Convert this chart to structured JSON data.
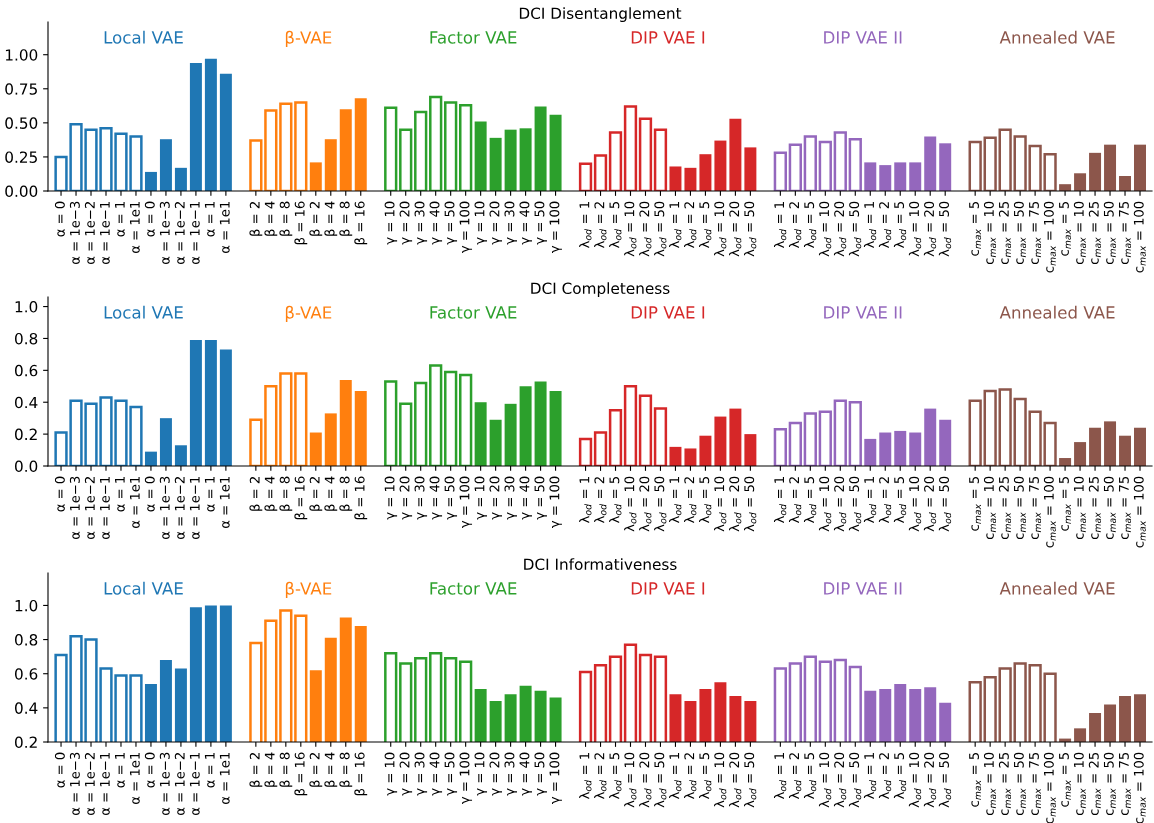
{
  "chart_data": [
    {
      "type": "bar",
      "title": "DCI Disentanglement",
      "annotations": [
        "Local VAE",
        "β-VAE",
        "Factor VAE",
        "DIP VAE I",
        "DIP VAE II",
        "Annealed VAE"
      ],
      "categories": [
        "α = 0",
        "α = 1e−3",
        "α = 1e−2",
        "α = 1e−1",
        "α = 1",
        "α = 1e1",
        "α = 0",
        "α = 1e−3",
        "α = 1e−2",
        "α = 1e−1",
        "α = 1",
        "α = 1e1",
        null,
        "β = 2",
        "β = 4",
        "β = 8",
        "β = 16",
        "β = 2",
        "β = 4",
        "β = 8",
        "β = 16",
        null,
        "γ = 10",
        "γ = 20",
        "γ = 30",
        "γ = 40",
        "γ = 50",
        "γ = 100",
        "γ = 10",
        "γ = 20",
        "γ = 30",
        "γ = 40",
        "γ = 50",
        "γ = 100",
        null,
        "λ$_{od}$ = 1",
        "λ$_{od}$ = 2",
        "λ$_{od}$ = 5",
        "λ$_{od}$ = 10",
        "λ$_{od}$ = 20",
        "λ$_{od}$ = 50",
        "λ$_{od}$ = 1",
        "λ$_{od}$ = 2",
        "λ$_{od}$ = 5",
        "λ$_{od}$ = 10",
        "λ$_{od}$ = 20",
        "λ$_{od}$ = 50",
        null,
        "λ$_{od}$ = 1",
        "λ$_{od}$ = 2",
        "λ$_{od}$ = 5",
        "λ$_{od}$ = 10",
        "λ$_{od}$ = 20",
        "λ$_{od}$ = 50",
        "λ$_{od}$ = 1",
        "λ$_{od}$ = 2",
        "λ$_{od}$ = 5",
        "λ$_{od}$ = 10",
        "λ$_{od}$ = 20",
        "λ$_{od}$ = 50",
        null,
        "c$_{max}$ = 5",
        "c$_{max}$ = 10",
        "c$_{max}$ = 25",
        "c$_{max}$ = 50",
        "c$_{max}$ = 75",
        "c$_{max}$ = 100",
        "c$_{max}$ = 5",
        "c$_{max}$ = 10",
        "c$_{max}$ = 25",
        "c$_{max}$ = 50",
        "c$_{max}$ = 75",
        "c$_{max}$ = 100"
      ],
      "ylim": [
        0,
        1.24
      ],
      "yticks": [
        {
          "value": 0,
          "label": "0.00"
        },
        {
          "value": 0.25,
          "label": "0.25"
        },
        {
          "value": 0.5,
          "label": "0.50"
        },
        {
          "value": 0.75,
          "label": "0.75"
        },
        {
          "value": 1,
          "label": "1.00"
        }
      ],
      "series": [
        {
          "colors": [
            "#1f77b4",
            "#1f77b4",
            "#1f77b4",
            "#1f77b4",
            "#1f77b4",
            "#1f77b4",
            null,
            null,
            null,
            null,
            null,
            null,
            null,
            "#ff7f0e",
            "#ff7f0e",
            "#ff7f0e",
            "#ff7f0e",
            null,
            null,
            null,
            null,
            null,
            "#2ca02c",
            "#2ca02c",
            "#2ca02c",
            "#2ca02c",
            "#2ca02c",
            "#2ca02c",
            null,
            null,
            null,
            null,
            null,
            null,
            null,
            "#d62728",
            "#d62728",
            "#d62728",
            "#d62728",
            "#d62728",
            "#d62728",
            null,
            null,
            null,
            null,
            null,
            null,
            null,
            "#9467bd",
            "#9467bd",
            "#9467bd",
            "#9467bd",
            "#9467bd",
            "#9467bd",
            null,
            null,
            null,
            null,
            null,
            null,
            null,
            "#8c564b",
            "#8c564b",
            "#8c564b",
            "#8c564b",
            "#8c564b",
            "#8c564b",
            null,
            null,
            null,
            null,
            null,
            null
          ],
          "values": [
            0.25,
            0.49,
            0.45,
            0.46,
            0.42,
            0.4,
            null,
            null,
            null,
            null,
            null,
            null,
            null,
            0.37,
            0.59,
            0.64,
            0.65,
            null,
            null,
            null,
            null,
            null,
            0.61,
            0.45,
            0.58,
            0.69,
            0.65,
            0.63,
            null,
            null,
            null,
            null,
            null,
            null,
            null,
            0.2,
            0.26,
            0.43,
            0.62,
            0.53,
            0.45,
            null,
            null,
            null,
            null,
            null,
            null,
            null,
            0.28,
            0.34,
            0.4,
            0.36,
            0.43,
            0.38,
            null,
            null,
            null,
            null,
            null,
            null,
            null,
            0.36,
            0.39,
            0.45,
            0.4,
            0.33,
            0.27,
            null,
            null,
            null,
            null,
            null,
            null
          ]
        },
        {
          "colors": [
            null,
            null,
            null,
            null,
            null,
            null,
            "#1f77b4",
            "#1f77b4",
            "#1f77b4",
            "#1f77b4",
            "#1f77b4",
            "#1f77b4",
            null,
            null,
            null,
            null,
            null,
            "#ff7f0e",
            "#ff7f0e",
            "#ff7f0e",
            "#ff7f0e",
            null,
            null,
            null,
            null,
            null,
            null,
            null,
            "#2ca02c",
            "#2ca02c",
            "#2ca02c",
            "#2ca02c",
            "#2ca02c",
            "#2ca02c",
            null,
            null,
            null,
            null,
            null,
            null,
            null,
            "#d62728",
            "#d62728",
            "#d62728",
            "#d62728",
            "#d62728",
            "#d62728",
            null,
            null,
            null,
            null,
            null,
            null,
            null,
            "#9467bd",
            "#9467bd",
            "#9467bd",
            "#9467bd",
            "#9467bd",
            "#9467bd",
            null,
            null,
            null,
            null,
            null,
            null,
            null,
            "#8c564b",
            "#8c564b",
            "#8c564b",
            "#8c564b",
            "#8c564b",
            "#8c564b"
          ],
          "values": [
            null,
            null,
            null,
            null,
            null,
            null,
            0.14,
            0.38,
            0.17,
            0.94,
            0.97,
            0.86,
            null,
            null,
            null,
            null,
            null,
            0.21,
            0.38,
            0.6,
            0.68,
            null,
            null,
            null,
            null,
            null,
            null,
            null,
            0.51,
            0.39,
            0.45,
            0.46,
            0.62,
            0.56,
            null,
            null,
            null,
            null,
            null,
            null,
            null,
            0.18,
            0.17,
            0.27,
            0.37,
            0.53,
            0.32,
            null,
            null,
            null,
            null,
            null,
            null,
            null,
            0.21,
            0.19,
            0.21,
            0.21,
            0.4,
            0.35,
            null,
            null,
            null,
            null,
            null,
            null,
            null,
            0.05,
            0.13,
            0.28,
            0.34,
            0.11,
            0.34
          ]
        }
      ]
    },
    {
      "type": "bar",
      "title": "DCI Completeness",
      "annotations": [
        "Local VAE",
        "β-VAE",
        "Factor VAE",
        "DIP VAE I",
        "DIP VAE II",
        "Annealed VAE"
      ],
      "categories": [
        "α = 0",
        "α = 1e−3",
        "α = 1e−2",
        "α = 1e−1",
        "α = 1",
        "α = 1e1",
        "α = 0",
        "α = 1e−3",
        "α = 1e−2",
        "α = 1e−1",
        "α = 1",
        "α = 1e1",
        null,
        "β = 2",
        "β = 4",
        "β = 8",
        "β = 16",
        "β = 2",
        "β = 4",
        "β = 8",
        "β = 16",
        null,
        "γ = 10",
        "γ = 20",
        "γ = 30",
        "γ = 40",
        "γ = 50",
        "γ = 100",
        "γ = 10",
        "γ = 20",
        "γ = 30",
        "γ = 40",
        "γ = 50",
        "γ = 100",
        null,
        "λ$_{od}$ = 1",
        "λ$_{od}$ = 2",
        "λ$_{od}$ = 5",
        "λ$_{od}$ = 10",
        "λ$_{od}$ = 20",
        "λ$_{od}$ = 50",
        "λ$_{od}$ = 1",
        "λ$_{od}$ = 2",
        "λ$_{od}$ = 5",
        "λ$_{od}$ = 10",
        "λ$_{od}$ = 20",
        "λ$_{od}$ = 50",
        null,
        "λ$_{od}$ = 1",
        "λ$_{od}$ = 2",
        "λ$_{od}$ = 5",
        "λ$_{od}$ = 10",
        "λ$_{od}$ = 20",
        "λ$_{od}$ = 50",
        "λ$_{od}$ = 1",
        "λ$_{od}$ = 2",
        "λ$_{od}$ = 5",
        "λ$_{od}$ = 10",
        "λ$_{od}$ = 20",
        "λ$_{od}$ = 50",
        null,
        "c$_{max}$ = 5",
        "c$_{max}$ = 10",
        "c$_{max}$ = 25",
        "c$_{max}$ = 50",
        "c$_{max}$ = 75",
        "c$_{max}$ = 100",
        "c$_{max}$ = 5",
        "c$_{max}$ = 10",
        "c$_{max}$ = 25",
        "c$_{max}$ = 50",
        "c$_{max}$ = 75",
        "c$_{max}$ = 100"
      ],
      "ylim": [
        0,
        1.06
      ],
      "yticks": [
        {
          "value": 0,
          "label": "0.0"
        },
        {
          "value": 0.2,
          "label": "0.2"
        },
        {
          "value": 0.4,
          "label": "0.4"
        },
        {
          "value": 0.6,
          "label": "0.6"
        },
        {
          "value": 0.8,
          "label": "0.8"
        },
        {
          "value": 1,
          "label": "1.0"
        }
      ],
      "series": [
        {
          "colors": [
            "#1f77b4",
            "#1f77b4",
            "#1f77b4",
            "#1f77b4",
            "#1f77b4",
            "#1f77b4",
            null,
            null,
            null,
            null,
            null,
            null,
            null,
            "#ff7f0e",
            "#ff7f0e",
            "#ff7f0e",
            "#ff7f0e",
            null,
            null,
            null,
            null,
            null,
            "#2ca02c",
            "#2ca02c",
            "#2ca02c",
            "#2ca02c",
            "#2ca02c",
            "#2ca02c",
            null,
            null,
            null,
            null,
            null,
            null,
            null,
            "#d62728",
            "#d62728",
            "#d62728",
            "#d62728",
            "#d62728",
            "#d62728",
            null,
            null,
            null,
            null,
            null,
            null,
            null,
            "#9467bd",
            "#9467bd",
            "#9467bd",
            "#9467bd",
            "#9467bd",
            "#9467bd",
            null,
            null,
            null,
            null,
            null,
            null,
            null,
            "#8c564b",
            "#8c564b",
            "#8c564b",
            "#8c564b",
            "#8c564b",
            "#8c564b",
            null,
            null,
            null,
            null,
            null,
            null
          ],
          "values": [
            0.21,
            0.41,
            0.39,
            0.43,
            0.41,
            0.37,
            null,
            null,
            null,
            null,
            null,
            null,
            null,
            0.29,
            0.5,
            0.58,
            0.58,
            null,
            null,
            null,
            null,
            null,
            0.53,
            0.39,
            0.52,
            0.63,
            0.59,
            0.57,
            null,
            null,
            null,
            null,
            null,
            null,
            null,
            0.17,
            0.21,
            0.35,
            0.5,
            0.44,
            0.36,
            null,
            null,
            null,
            null,
            null,
            null,
            null,
            0.23,
            0.27,
            0.33,
            0.34,
            0.41,
            0.4,
            null,
            null,
            null,
            null,
            null,
            null,
            null,
            0.41,
            0.47,
            0.48,
            0.42,
            0.34,
            0.27,
            null,
            null,
            null,
            null,
            null,
            null
          ]
        },
        {
          "colors": [
            null,
            null,
            null,
            null,
            null,
            null,
            "#1f77b4",
            "#1f77b4",
            "#1f77b4",
            "#1f77b4",
            "#1f77b4",
            "#1f77b4",
            null,
            null,
            null,
            null,
            null,
            "#ff7f0e",
            "#ff7f0e",
            "#ff7f0e",
            "#ff7f0e",
            null,
            null,
            null,
            null,
            null,
            null,
            null,
            "#2ca02c",
            "#2ca02c",
            "#2ca02c",
            "#2ca02c",
            "#2ca02c",
            "#2ca02c",
            null,
            null,
            null,
            null,
            null,
            null,
            null,
            "#d62728",
            "#d62728",
            "#d62728",
            "#d62728",
            "#d62728",
            "#d62728",
            null,
            null,
            null,
            null,
            null,
            null,
            null,
            "#9467bd",
            "#9467bd",
            "#9467bd",
            "#9467bd",
            "#9467bd",
            "#9467bd",
            null,
            null,
            null,
            null,
            null,
            null,
            null,
            "#8c564b",
            "#8c564b",
            "#8c564b",
            "#8c564b",
            "#8c564b",
            "#8c564b"
          ],
          "values": [
            null,
            null,
            null,
            null,
            null,
            null,
            0.09,
            0.3,
            0.13,
            0.79,
            0.79,
            0.73,
            null,
            null,
            null,
            null,
            null,
            0.21,
            0.33,
            0.54,
            0.47,
            null,
            null,
            null,
            null,
            null,
            null,
            null,
            0.4,
            0.29,
            0.39,
            0.5,
            0.53,
            0.47,
            null,
            null,
            null,
            null,
            null,
            null,
            null,
            0.12,
            0.11,
            0.19,
            0.31,
            0.36,
            0.2,
            null,
            null,
            null,
            null,
            null,
            null,
            null,
            0.17,
            0.21,
            0.22,
            0.21,
            0.36,
            0.29,
            null,
            null,
            null,
            null,
            null,
            null,
            null,
            0.05,
            0.15,
            0.24,
            0.28,
            0.19,
            0.24
          ]
        }
      ]
    },
    {
      "type": "bar",
      "title": "DCI Informativeness",
      "annotations": [
        "Local VAE",
        "β-VAE",
        "Factor VAE",
        "DIP VAE I",
        "DIP VAE II",
        "Annealed VAE"
      ],
      "categories": [
        "α = 0",
        "α = 1e−3",
        "α = 1e−2",
        "α = 1e−1",
        "α = 1",
        "α = 1e1",
        "α = 0",
        "α = 1e−3",
        "α = 1e−2",
        "α = 1e−1",
        "α = 1",
        "α = 1e1",
        null,
        "β = 2",
        "β = 4",
        "β = 8",
        "β = 16",
        "β = 2",
        "β = 4",
        "β = 8",
        "β = 16",
        null,
        "γ = 10",
        "γ = 20",
        "γ = 30",
        "γ = 40",
        "γ = 50",
        "γ = 100",
        "γ = 10",
        "γ = 20",
        "γ = 30",
        "γ = 40",
        "γ = 50",
        "γ = 100",
        null,
        "λ$_{od}$ = 1",
        "λ$_{od}$ = 2",
        "λ$_{od}$ = 5",
        "λ$_{od}$ = 10",
        "λ$_{od}$ = 20",
        "λ$_{od}$ = 50",
        "λ$_{od}$ = 1",
        "λ$_{od}$ = 2",
        "λ$_{od}$ = 5",
        "λ$_{od}$ = 10",
        "λ$_{od}$ = 20",
        "λ$_{od}$ = 50",
        null,
        "λ$_{od}$ = 1",
        "λ$_{od}$ = 2",
        "λ$_{od}$ = 5",
        "λ$_{od}$ = 10",
        "λ$_{od}$ = 20",
        "λ$_{od}$ = 50",
        "λ$_{od}$ = 1",
        "λ$_{od}$ = 2",
        "λ$_{od}$ = 5",
        "λ$_{od}$ = 10",
        "λ$_{od}$ = 20",
        "λ$_{od}$ = 50",
        null,
        "c$_{max}$ = 5",
        "c$_{max}$ = 10",
        "c$_{max}$ = 25",
        "c$_{max}$ = 50",
        "c$_{max}$ = 75",
        "c$_{max}$ = 100",
        "c$_{max}$ = 5",
        "c$_{max}$ = 10",
        "c$_{max}$ = 25",
        "c$_{max}$ = 50",
        "c$_{max}$ = 75",
        "c$_{max}$ = 100"
      ],
      "ylim": [
        0.2,
        1.19
      ],
      "yticks": [
        {
          "value": 0.2,
          "label": "0.2"
        },
        {
          "value": 0.4,
          "label": "0.4"
        },
        {
          "value": 0.6,
          "label": "0.6"
        },
        {
          "value": 0.8,
          "label": "0.8"
        },
        {
          "value": 1,
          "label": "1.0"
        }
      ],
      "series": [
        {
          "colors": [
            "#1f77b4",
            "#1f77b4",
            "#1f77b4",
            "#1f77b4",
            "#1f77b4",
            "#1f77b4",
            null,
            null,
            null,
            null,
            null,
            null,
            null,
            "#ff7f0e",
            "#ff7f0e",
            "#ff7f0e",
            "#ff7f0e",
            null,
            null,
            null,
            null,
            null,
            "#2ca02c",
            "#2ca02c",
            "#2ca02c",
            "#2ca02c",
            "#2ca02c",
            "#2ca02c",
            null,
            null,
            null,
            null,
            null,
            null,
            null,
            "#d62728",
            "#d62728",
            "#d62728",
            "#d62728",
            "#d62728",
            "#d62728",
            null,
            null,
            null,
            null,
            null,
            null,
            null,
            "#9467bd",
            "#9467bd",
            "#9467bd",
            "#9467bd",
            "#9467bd",
            "#9467bd",
            null,
            null,
            null,
            null,
            null,
            null,
            null,
            "#8c564b",
            "#8c564b",
            "#8c564b",
            "#8c564b",
            "#8c564b",
            "#8c564b",
            null,
            null,
            null,
            null,
            null,
            null
          ],
          "values": [
            0.71,
            0.82,
            0.8,
            0.63,
            0.59,
            0.59,
            null,
            null,
            null,
            null,
            null,
            null,
            null,
            0.78,
            0.91,
            0.97,
            0.94,
            null,
            null,
            null,
            null,
            null,
            0.72,
            0.66,
            0.69,
            0.72,
            0.69,
            0.67,
            null,
            null,
            null,
            null,
            null,
            null,
            null,
            0.61,
            0.65,
            0.7,
            0.77,
            0.71,
            0.7,
            null,
            null,
            null,
            null,
            null,
            null,
            null,
            0.63,
            0.66,
            0.7,
            0.67,
            0.68,
            0.64,
            null,
            null,
            null,
            null,
            null,
            null,
            null,
            0.55,
            0.58,
            0.63,
            0.66,
            0.65,
            0.6,
            null,
            null,
            null,
            null,
            null,
            null
          ]
        },
        {
          "colors": [
            null,
            null,
            null,
            null,
            null,
            null,
            "#1f77b4",
            "#1f77b4",
            "#1f77b4",
            "#1f77b4",
            "#1f77b4",
            "#1f77b4",
            null,
            null,
            null,
            null,
            null,
            "#ff7f0e",
            "#ff7f0e",
            "#ff7f0e",
            "#ff7f0e",
            null,
            null,
            null,
            null,
            null,
            null,
            null,
            "#2ca02c",
            "#2ca02c",
            "#2ca02c",
            "#2ca02c",
            "#2ca02c",
            "#2ca02c",
            null,
            null,
            null,
            null,
            null,
            null,
            null,
            "#d62728",
            "#d62728",
            "#d62728",
            "#d62728",
            "#d62728",
            "#d62728",
            null,
            null,
            null,
            null,
            null,
            null,
            null,
            "#9467bd",
            "#9467bd",
            "#9467bd",
            "#9467bd",
            "#9467bd",
            "#9467bd",
            null,
            null,
            null,
            null,
            null,
            null,
            null,
            "#8c564b",
            "#8c564b",
            "#8c564b",
            "#8c564b",
            "#8c564b",
            "#8c564b"
          ],
          "values": [
            null,
            null,
            null,
            null,
            null,
            null,
            0.54,
            0.68,
            0.63,
            0.99,
            1.0,
            1.0,
            null,
            null,
            null,
            null,
            null,
            0.62,
            0.81,
            0.93,
            0.88,
            null,
            null,
            null,
            null,
            null,
            null,
            null,
            0.51,
            0.44,
            0.48,
            0.53,
            0.5,
            0.46,
            null,
            null,
            null,
            null,
            null,
            null,
            null,
            0.48,
            0.44,
            0.51,
            0.55,
            0.47,
            0.44,
            null,
            null,
            null,
            null,
            null,
            null,
            null,
            0.5,
            0.51,
            0.54,
            0.51,
            0.52,
            0.43,
            null,
            null,
            null,
            null,
            null,
            null,
            null,
            0.22,
            0.28,
            0.37,
            0.42,
            0.47,
            0.48
          ]
        }
      ]
    }
  ]
}
